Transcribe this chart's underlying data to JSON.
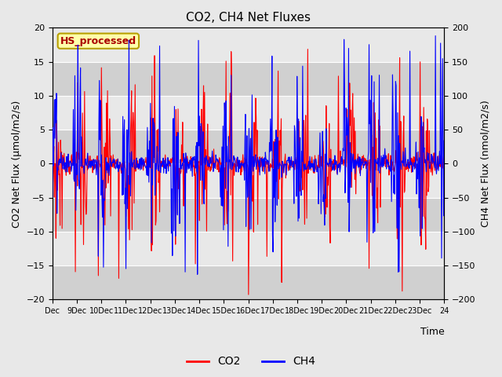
{
  "title": "CO2, CH4 Net Fluxes",
  "xlabel": "Time",
  "ylabel_left": "CO2 Net Flux (μmol/m2/s)",
  "ylabel_right": "CH4 Net Flux (nmol/m2/s)",
  "ylim_left": [
    -20,
    20
  ],
  "ylim_right": [
    -200,
    200
  ],
  "yticks_left": [
    -20,
    -15,
    -10,
    -5,
    0,
    5,
    10,
    15,
    20
  ],
  "yticks_right": [
    -200,
    -150,
    -100,
    -50,
    0,
    50,
    100,
    150,
    200
  ],
  "color_co2": "#ff0000",
  "color_ch4": "#0000ff",
  "annotation_text": "HS_processed",
  "annotation_bg": "#ffffaa",
  "annotation_border": "#b8a000",
  "annotation_fg": "#aa0000",
  "legend_entries": [
    "CO2",
    "CH4"
  ],
  "outer_bg": "#e8e8e8",
  "plot_bg_light": "#e8e8e8",
  "plot_bg_dark": "#d0d0d0",
  "figsize": [
    6.4,
    4.8
  ],
  "dpi": 100,
  "scale_factor": 10
}
